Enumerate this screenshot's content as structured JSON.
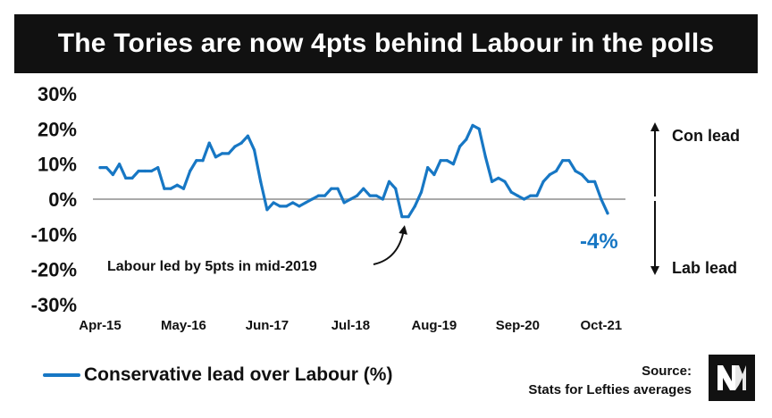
{
  "colors": {
    "series": "#1777c4",
    "title_bg": "#111111",
    "zero_line": "#aaaaaa"
  },
  "logo": {
    "icon": "nm-monogram-icon"
  },
  "chart_data": {
    "type": "line",
    "title": "The Tories are now 4pts behind Labour in the polls",
    "ylim": [
      -30,
      30
    ],
    "y_ticks": [
      "30%",
      "20%",
      "10%",
      "0%",
      "-10%",
      "-20%",
      "-30%"
    ],
    "y_tick_values": [
      30,
      20,
      10,
      0,
      -10,
      -20,
      -30
    ],
    "x_ticks": [
      "Apr-15",
      "May-16",
      "Jun-17",
      "Jul-18",
      "Aug-19",
      "Sep-20",
      "Oct-21"
    ],
    "x_tick_index": [
      0,
      13,
      26,
      39,
      52,
      65,
      78
    ],
    "grid": false,
    "series": [
      {
        "name": "Conservative lead over Labour (%)",
        "values": [
          9,
          9,
          7,
          10,
          6,
          6,
          8,
          8,
          8,
          9,
          3,
          3,
          4,
          3,
          8,
          11,
          11,
          16,
          12,
          13,
          13,
          15,
          16,
          18,
          14,
          5,
          -3,
          -1,
          -2,
          -2,
          -1,
          -2,
          -1,
          0,
          1,
          1,
          3,
          3,
          -1,
          0,
          1,
          3,
          1,
          1,
          0,
          5,
          3,
          -5,
          -5,
          -2,
          2,
          9,
          7,
          11,
          11,
          10,
          15,
          17,
          21,
          20,
          12,
          5,
          6,
          5,
          2,
          1,
          0,
          1,
          1,
          5,
          7,
          8,
          11,
          11,
          8,
          7,
          5,
          5,
          0,
          -4
        ]
      }
    ],
    "annotations": {
      "low_point": "Labour led by 5pts in mid-2019",
      "con_lead": "Con lead",
      "lab_lead": "Lab lead",
      "last_value": "-4%"
    },
    "legend_position": "bottom-left",
    "source_lines": [
      "Source:",
      "Stats for Lefties averages"
    ]
  }
}
